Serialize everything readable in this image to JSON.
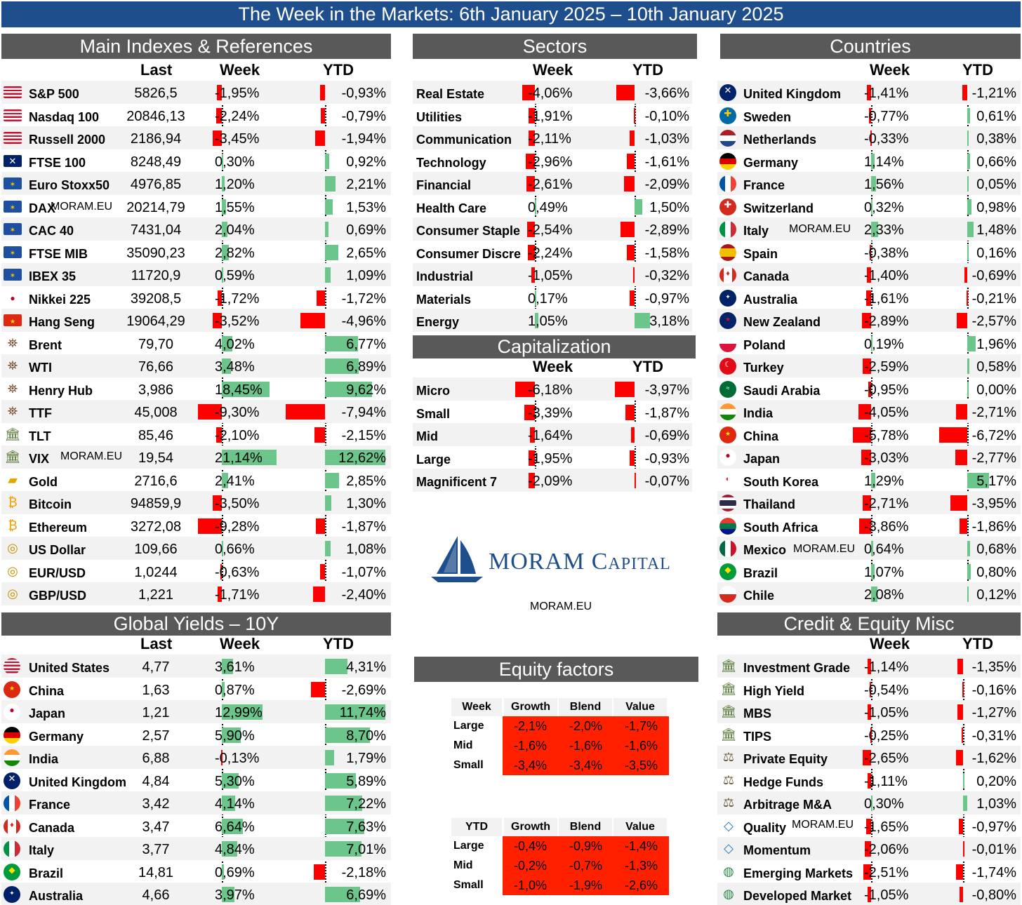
{
  "title": "The Week in the Markets: 6th January  2025 – 10th January 2025",
  "watermark": "MORAM.EU",
  "logo": {
    "brand": "MORAM CAPITAL",
    "brand_word1": "MORAM",
    "brand_word2": "Capital",
    "url": "MORAM.EU",
    "color": "#1f4e8c"
  },
  "colors": {
    "positive": "#6cc58b",
    "negative": "#ff0000",
    "header": "#595959",
    "title": "#1f4e8c"
  },
  "main": {
    "header": "Main Indexes & References",
    "col_last": "Last",
    "col_week": "Week",
    "col_ytd": "YTD",
    "rows": [
      {
        "icon": "us-flag-icon",
        "name": "S&P 500",
        "last": "5826,5",
        "week": "-1,95%",
        "ytd": "-0,93%",
        "w": -1.95,
        "y": -0.93
      },
      {
        "icon": "us-flag-icon",
        "name": "Nasdaq 100",
        "last": "20846,13",
        "week": "-2,24%",
        "ytd": "-0,79%",
        "w": -2.24,
        "y": -0.79
      },
      {
        "icon": "us-flag-icon",
        "name": "Russell 2000",
        "last": "2186,94",
        "week": "-3,45%",
        "ytd": "-1,94%",
        "w": -3.45,
        "y": -1.94
      },
      {
        "icon": "uk-flag-icon",
        "name": "FTSE 100",
        "last": "8248,49",
        "week": "0,30%",
        "ytd": "0,92%",
        "w": 0.3,
        "y": 0.92
      },
      {
        "icon": "eu-flag-icon",
        "name": "Euro Stoxx50",
        "last": "4976,85",
        "week": "1,20%",
        "ytd": "2,21%",
        "w": 1.2,
        "y": 2.21
      },
      {
        "icon": "eu-flag-icon",
        "name": "DAX",
        "last": "20214,79",
        "week": "1,55%",
        "ytd": "1,53%",
        "w": 1.55,
        "y": 1.53
      },
      {
        "icon": "eu-flag-icon",
        "name": "CAC 40",
        "last": "7431,04",
        "week": "2,04%",
        "ytd": "0,69%",
        "w": 2.04,
        "y": 0.69
      },
      {
        "icon": "eu-flag-icon",
        "name": "FTSE MIB",
        "last": "35090,23",
        "week": "2,82%",
        "ytd": "2,65%",
        "w": 2.82,
        "y": 2.65
      },
      {
        "icon": "eu-flag-icon",
        "name": "IBEX 35",
        "last": "11720,9",
        "week": "0,59%",
        "ytd": "1,09%",
        "w": 0.59,
        "y": 1.09
      },
      {
        "icon": "japan-flag-icon",
        "name": "Nikkei 225",
        "last": "39208,5",
        "week": "-1,72%",
        "ytd": "-1,72%",
        "w": -1.72,
        "y": -1.72
      },
      {
        "icon": "china-flag-icon",
        "name": "Hang Seng",
        "last": "19064,29",
        "week": "-3,52%",
        "ytd": "-4,96%",
        "w": -3.52,
        "y": -4.96
      },
      {
        "icon": "oil-rig-icon",
        "name": "Brent",
        "last": "79,70",
        "week": "4,02%",
        "ytd": "6,77%",
        "w": 4.02,
        "y": 6.77
      },
      {
        "icon": "oil-rig-icon",
        "name": "WTI",
        "last": "76,66",
        "week": "3,48%",
        "ytd": "6,89%",
        "w": 3.48,
        "y": 6.89
      },
      {
        "icon": "oil-rig-icon",
        "name": "Henry Hub",
        "last": "3,986",
        "week": "18,45%",
        "ytd": "9,62%",
        "w": 18.45,
        "y": 9.62
      },
      {
        "icon": "oil-rig-icon",
        "name": "TTF",
        "last": "45,008",
        "week": "-9,30%",
        "ytd": "-7,94%",
        "w": -9.3,
        "y": -7.94
      },
      {
        "icon": "bank-icon",
        "name": "TLT",
        "last": "85,46",
        "week": "-2,10%",
        "ytd": "-2,15%",
        "w": -2.1,
        "y": -2.15
      },
      {
        "icon": "bank-icon",
        "name": "VIX",
        "last": "19,54",
        "week": "21,14%",
        "ytd": "12,62%",
        "w": 21.14,
        "y": 12.62
      },
      {
        "icon": "gold-icon",
        "name": "Gold",
        "last": "2716,6",
        "week": "2,41%",
        "ytd": "2,85%",
        "w": 2.41,
        "y": 2.85
      },
      {
        "icon": "crypto-icon",
        "name": "Bitcoin",
        "last": "94859,9",
        "week": "-3,50%",
        "ytd": "1,30%",
        "w": -3.5,
        "y": 1.3
      },
      {
        "icon": "crypto-icon",
        "name": "Ethereum",
        "last": "3272,08",
        "week": "-9,28%",
        "ytd": "-1,87%",
        "w": -9.28,
        "y": -1.87
      },
      {
        "icon": "coins-icon",
        "name": "US Dollar",
        "last": "109,66",
        "week": "0,66%",
        "ytd": "1,08%",
        "w": 0.66,
        "y": 1.08
      },
      {
        "icon": "coins-icon",
        "name": "EUR/USD",
        "last": "1,0244",
        "week": "-0,63%",
        "ytd": "-1,07%",
        "w": -0.63,
        "y": -1.07
      },
      {
        "icon": "coins-icon",
        "name": "GBP/USD",
        "last": "1,221",
        "week": "-1,71%",
        "ytd": "-2,40%",
        "w": -1.71,
        "y": -2.4
      }
    ]
  },
  "sectors": {
    "header": "Sectors",
    "col_week": "Week",
    "col_ytd": "YTD",
    "rows": [
      {
        "name": "Real Estate",
        "week": "-4,06%",
        "ytd": "-3,66%",
        "w": -4.06,
        "y": -3.66
      },
      {
        "name": "Utilities",
        "week": "-1,91%",
        "ytd": "-0,10%",
        "w": -1.91,
        "y": -0.1
      },
      {
        "name": "Communication",
        "week": "-2,11%",
        "ytd": "-1,03%",
        "w": -2.11,
        "y": -1.03
      },
      {
        "name": "Technology",
        "week": "-2,96%",
        "ytd": "-1,61%",
        "w": -2.96,
        "y": -1.61
      },
      {
        "name": "Financial",
        "week": "-2,61%",
        "ytd": "-2,09%",
        "w": -2.61,
        "y": -2.09
      },
      {
        "name": "Health Care",
        "week": "0,49%",
        "ytd": "1,50%",
        "w": 0.49,
        "y": 1.5
      },
      {
        "name": "Consumer Staple",
        "week": "-2,54%",
        "ytd": "-2,89%",
        "w": -2.54,
        "y": -2.89
      },
      {
        "name": "Consumer Discre",
        "week": "-2,24%",
        "ytd": "-1,58%",
        "w": -2.24,
        "y": -1.58
      },
      {
        "name": "Industrial",
        "week": "-1,05%",
        "ytd": "-0,32%",
        "w": -1.05,
        "y": -0.32
      },
      {
        "name": "Materials",
        "week": "0,17%",
        "ytd": "-0,97%",
        "w": 0.17,
        "y": -0.97
      },
      {
        "name": "Energy",
        "week": "1,05%",
        "ytd": "3,18%",
        "w": 1.05,
        "y": 3.18
      }
    ]
  },
  "capitalization": {
    "header": "Capitalization",
    "col_week": "Week",
    "col_ytd": "YTD",
    "rows": [
      {
        "name": "Micro",
        "week": "-6,18%",
        "ytd": "-3,97%",
        "w": -6.18,
        "y": -3.97
      },
      {
        "name": "Small",
        "week": "-3,39%",
        "ytd": "-1,87%",
        "w": -3.39,
        "y": -1.87
      },
      {
        "name": "Mid",
        "week": "-1,64%",
        "ytd": "-0,69%",
        "w": -1.64,
        "y": -0.69
      },
      {
        "name": "Large",
        "week": "-1,95%",
        "ytd": "-0,93%",
        "w": -1.95,
        "y": -0.93
      },
      {
        "name": "Magnificent 7",
        "week": "-2,09%",
        "ytd": "-0,07%",
        "w": -2.09,
        "y": -0.07
      }
    ]
  },
  "countries": {
    "header": "Countries",
    "col_week": "Week",
    "col_ytd": "YTD",
    "rows": [
      {
        "icon": "uk-flag-icon",
        "name": "United Kingdom",
        "week": "-1,41%",
        "ytd": "-1,21%",
        "w": -1.41,
        "y": -1.21
      },
      {
        "icon": "sweden-flag-icon",
        "name": "Sweden",
        "week": "-0,77%",
        "ytd": "0,61%",
        "w": -0.77,
        "y": 0.61
      },
      {
        "icon": "netherlands-flag-icon",
        "name": "Netherlands",
        "week": "-0,33%",
        "ytd": "0,38%",
        "w": -0.33,
        "y": 0.38
      },
      {
        "icon": "germany-flag-icon",
        "name": "Germany",
        "week": "1,14%",
        "ytd": "0,66%",
        "w": 1.14,
        "y": 0.66
      },
      {
        "icon": "france-flag-icon",
        "name": "France",
        "week": "1,56%",
        "ytd": "0,05%",
        "w": 1.56,
        "y": 0.05
      },
      {
        "icon": "switzerland-flag-icon",
        "name": "Switzerland",
        "week": "0,32%",
        "ytd": "0,98%",
        "w": 0.32,
        "y": 0.98
      },
      {
        "icon": "italy-flag-icon",
        "name": "Italy",
        "week": "2,33%",
        "ytd": "1,48%",
        "w": 2.33,
        "y": 1.48
      },
      {
        "icon": "spain-flag-icon",
        "name": "Spain",
        "week": "-0,38%",
        "ytd": "0,16%",
        "w": -0.38,
        "y": 0.16
      },
      {
        "icon": "canada-flag-icon",
        "name": "Canada",
        "week": "-1,40%",
        "ytd": "-0,69%",
        "w": -1.4,
        "y": -0.69
      },
      {
        "icon": "australia-flag-icon",
        "name": "Australia",
        "week": "-1,61%",
        "ytd": "-0,21%",
        "w": -1.61,
        "y": -0.21
      },
      {
        "icon": "new-zealand-flag-icon",
        "name": "New Zealand",
        "week": "-2,89%",
        "ytd": "-2,57%",
        "w": -2.89,
        "y": -2.57
      },
      {
        "icon": "poland-flag-icon",
        "name": "Poland",
        "week": "0,19%",
        "ytd": "1,96%",
        "w": 0.19,
        "y": 1.96
      },
      {
        "icon": "turkey-flag-icon",
        "name": "Turkey",
        "week": "-2,59%",
        "ytd": "0,58%",
        "w": -2.59,
        "y": 0.58
      },
      {
        "icon": "saudi-arabia-flag-icon",
        "name": "Saudi Arabia",
        "week": "-0,95%",
        "ytd": "0,00%",
        "w": -0.95,
        "y": 0.0
      },
      {
        "icon": "india-flag-icon",
        "name": "India",
        "week": "-4,05%",
        "ytd": "-2,71%",
        "w": -4.05,
        "y": -2.71
      },
      {
        "icon": "china-flag-icon",
        "name": "China",
        "week": "-5,78%",
        "ytd": "-6,72%",
        "w": -5.78,
        "y": -6.72
      },
      {
        "icon": "japan-flag-icon",
        "name": "Japan",
        "week": "-3,03%",
        "ytd": "-2,77%",
        "w": -3.03,
        "y": -2.77
      },
      {
        "icon": "south-korea-flag-icon",
        "name": "South Korea",
        "week": "1,29%",
        "ytd": "5,17%",
        "w": 1.29,
        "y": 5.17
      },
      {
        "icon": "thailand-flag-icon",
        "name": "Thailand",
        "week": "-2,71%",
        "ytd": "-3,95%",
        "w": -2.71,
        "y": -3.95
      },
      {
        "icon": "south-africa-flag-icon",
        "name": "South Africa",
        "week": "-3,86%",
        "ytd": "-1,86%",
        "w": -3.86,
        "y": -1.86
      },
      {
        "icon": "mexico-flag-icon",
        "name": "Mexico",
        "week": "0,64%",
        "ytd": "0,68%",
        "w": 0.64,
        "y": 0.68
      },
      {
        "icon": "brazil-flag-icon",
        "name": "Brazil",
        "week": "1,07%",
        "ytd": "0,80%",
        "w": 1.07,
        "y": 0.8
      },
      {
        "icon": "chile-flag-icon",
        "name": "Chile",
        "week": "2,08%",
        "ytd": "0,12%",
        "w": 2.08,
        "y": 0.12
      }
    ]
  },
  "yields": {
    "header": "Global Yields – 10Y",
    "col_last": "Last",
    "col_week": "Week",
    "col_ytd": "YTD",
    "rows": [
      {
        "icon": "us-flag-icon",
        "name": "United States",
        "last": "4,77",
        "week": "3,61%",
        "ytd": "4,31%",
        "w": 3.61,
        "y": 4.31
      },
      {
        "icon": "china-flag-icon",
        "name": "China",
        "last": "1,63",
        "week": "0,87%",
        "ytd": "-2,69%",
        "w": 0.87,
        "y": -2.69
      },
      {
        "icon": "japan-flag-icon",
        "name": "Japan",
        "last": "1,21",
        "week": "12,99%",
        "ytd": "11,74%",
        "w": 12.99,
        "y": 11.74
      },
      {
        "icon": "germany-flag-icon",
        "name": "Germany",
        "last": "2,57",
        "week": "5,90%",
        "ytd": "8,70%",
        "w": 5.9,
        "y": 8.7
      },
      {
        "icon": "india-flag-icon",
        "name": "India",
        "last": "6,88",
        "week": "-0,13%",
        "ytd": "1,79%",
        "w": -0.13,
        "y": 1.79
      },
      {
        "icon": "uk-flag-icon",
        "name": "United Kingdom",
        "last": "4,84",
        "week": "5,30%",
        "ytd": "5,89%",
        "w": 5.3,
        "y": 5.89
      },
      {
        "icon": "france-flag-icon",
        "name": "France",
        "last": "3,42",
        "week": "4,14%",
        "ytd": "7,22%",
        "w": 4.14,
        "y": 7.22
      },
      {
        "icon": "canada-flag-icon",
        "name": "Canada",
        "last": "3,47",
        "week": "6,64%",
        "ytd": "7,63%",
        "w": 6.64,
        "y": 7.63
      },
      {
        "icon": "italy-flag-icon",
        "name": "Italy",
        "last": "3,77",
        "week": "4,84%",
        "ytd": "7,01%",
        "w": 4.84,
        "y": 7.01
      },
      {
        "icon": "brazil-flag-icon",
        "name": "Brazil",
        "last": "14,81",
        "week": "0,69%",
        "ytd": "-2,18%",
        "w": 0.69,
        "y": -2.18
      },
      {
        "icon": "australia-flag-icon",
        "name": "Australia",
        "last": "4,66",
        "week": "3,97%",
        "ytd": "6,69%",
        "w": 3.97,
        "y": 6.69
      }
    ]
  },
  "credit": {
    "header": "Credit & Equity Misc",
    "col_week": "Week",
    "col_ytd": "YTD",
    "rows": [
      {
        "icon": "bank-icon",
        "name": "Investment Grade",
        "week": "-1,14%",
        "ytd": "-1,35%",
        "w": -1.14,
        "y": -1.35
      },
      {
        "icon": "bank-icon",
        "name": "High Yield",
        "week": "-0,54%",
        "ytd": "-0,16%",
        "w": -0.54,
        "y": -0.16
      },
      {
        "icon": "bank-icon",
        "name": "MBS",
        "week": "-1,05%",
        "ytd": "-1,27%",
        "w": -1.05,
        "y": -1.27
      },
      {
        "icon": "bank-icon",
        "name": "TIPS",
        "week": "-0,25%",
        "ytd": "-0,31%",
        "w": -0.25,
        "y": -0.31
      },
      {
        "icon": "scales-icon",
        "name": "Private Equity",
        "week": "-2,65%",
        "ytd": "-1,62%",
        "w": -2.65,
        "y": -1.62
      },
      {
        "icon": "scales-icon",
        "name": "Hedge Funds",
        "week": "-1,11%",
        "ytd": "0,20%",
        "w": -1.11,
        "y": 0.2
      },
      {
        "icon": "scales-icon",
        "name": "Arbitrage M&A",
        "week": "0,30%",
        "ytd": "1,03%",
        "w": 0.3,
        "y": 1.03
      },
      {
        "icon": "diamond-icon",
        "name": "Quality",
        "week": "-1,65%",
        "ytd": "-0,97%",
        "w": -1.65,
        "y": -0.97
      },
      {
        "icon": "diamond-icon",
        "name": "Momentum",
        "week": "-2,06%",
        "ytd": "-0,01%",
        "w": -2.06,
        "y": -0.01
      },
      {
        "icon": "globe-icon",
        "name": "Emerging Markets",
        "week": "-2,51%",
        "ytd": "-1,74%",
        "w": -2.51,
        "y": -1.74
      },
      {
        "icon": "globe-icon",
        "name": "Developed Market",
        "week": "-1,05%",
        "ytd": "-0,80%",
        "w": -1.05,
        "y": -0.8
      }
    ]
  },
  "factors": {
    "header": "Equity factors",
    "tables": [
      {
        "corner": "Week",
        "cols": [
          "Growth",
          "Blend",
          "Value"
        ],
        "rows": [
          {
            "label": "Large",
            "values": [
              "-2,1%",
              "-2,0%",
              "-1,7%"
            ]
          },
          {
            "label": "Mid",
            "values": [
              "-1,6%",
              "-1,6%",
              "-1,6%"
            ]
          },
          {
            "label": "Small",
            "values": [
              "-3,4%",
              "-3,4%",
              "-3,5%"
            ]
          }
        ]
      },
      {
        "corner": "YTD",
        "cols": [
          "Growth",
          "Blend",
          "Value"
        ],
        "rows": [
          {
            "label": "Large",
            "values": [
              "-0,4%",
              "-0,9%",
              "-1,4%"
            ]
          },
          {
            "label": "Mid",
            "values": [
              "-0,2%",
              "-0,7%",
              "-1,3%"
            ]
          },
          {
            "label": "Small",
            "values": [
              "-1,0%",
              "-1,9%",
              "-2,6%"
            ]
          }
        ]
      }
    ]
  }
}
